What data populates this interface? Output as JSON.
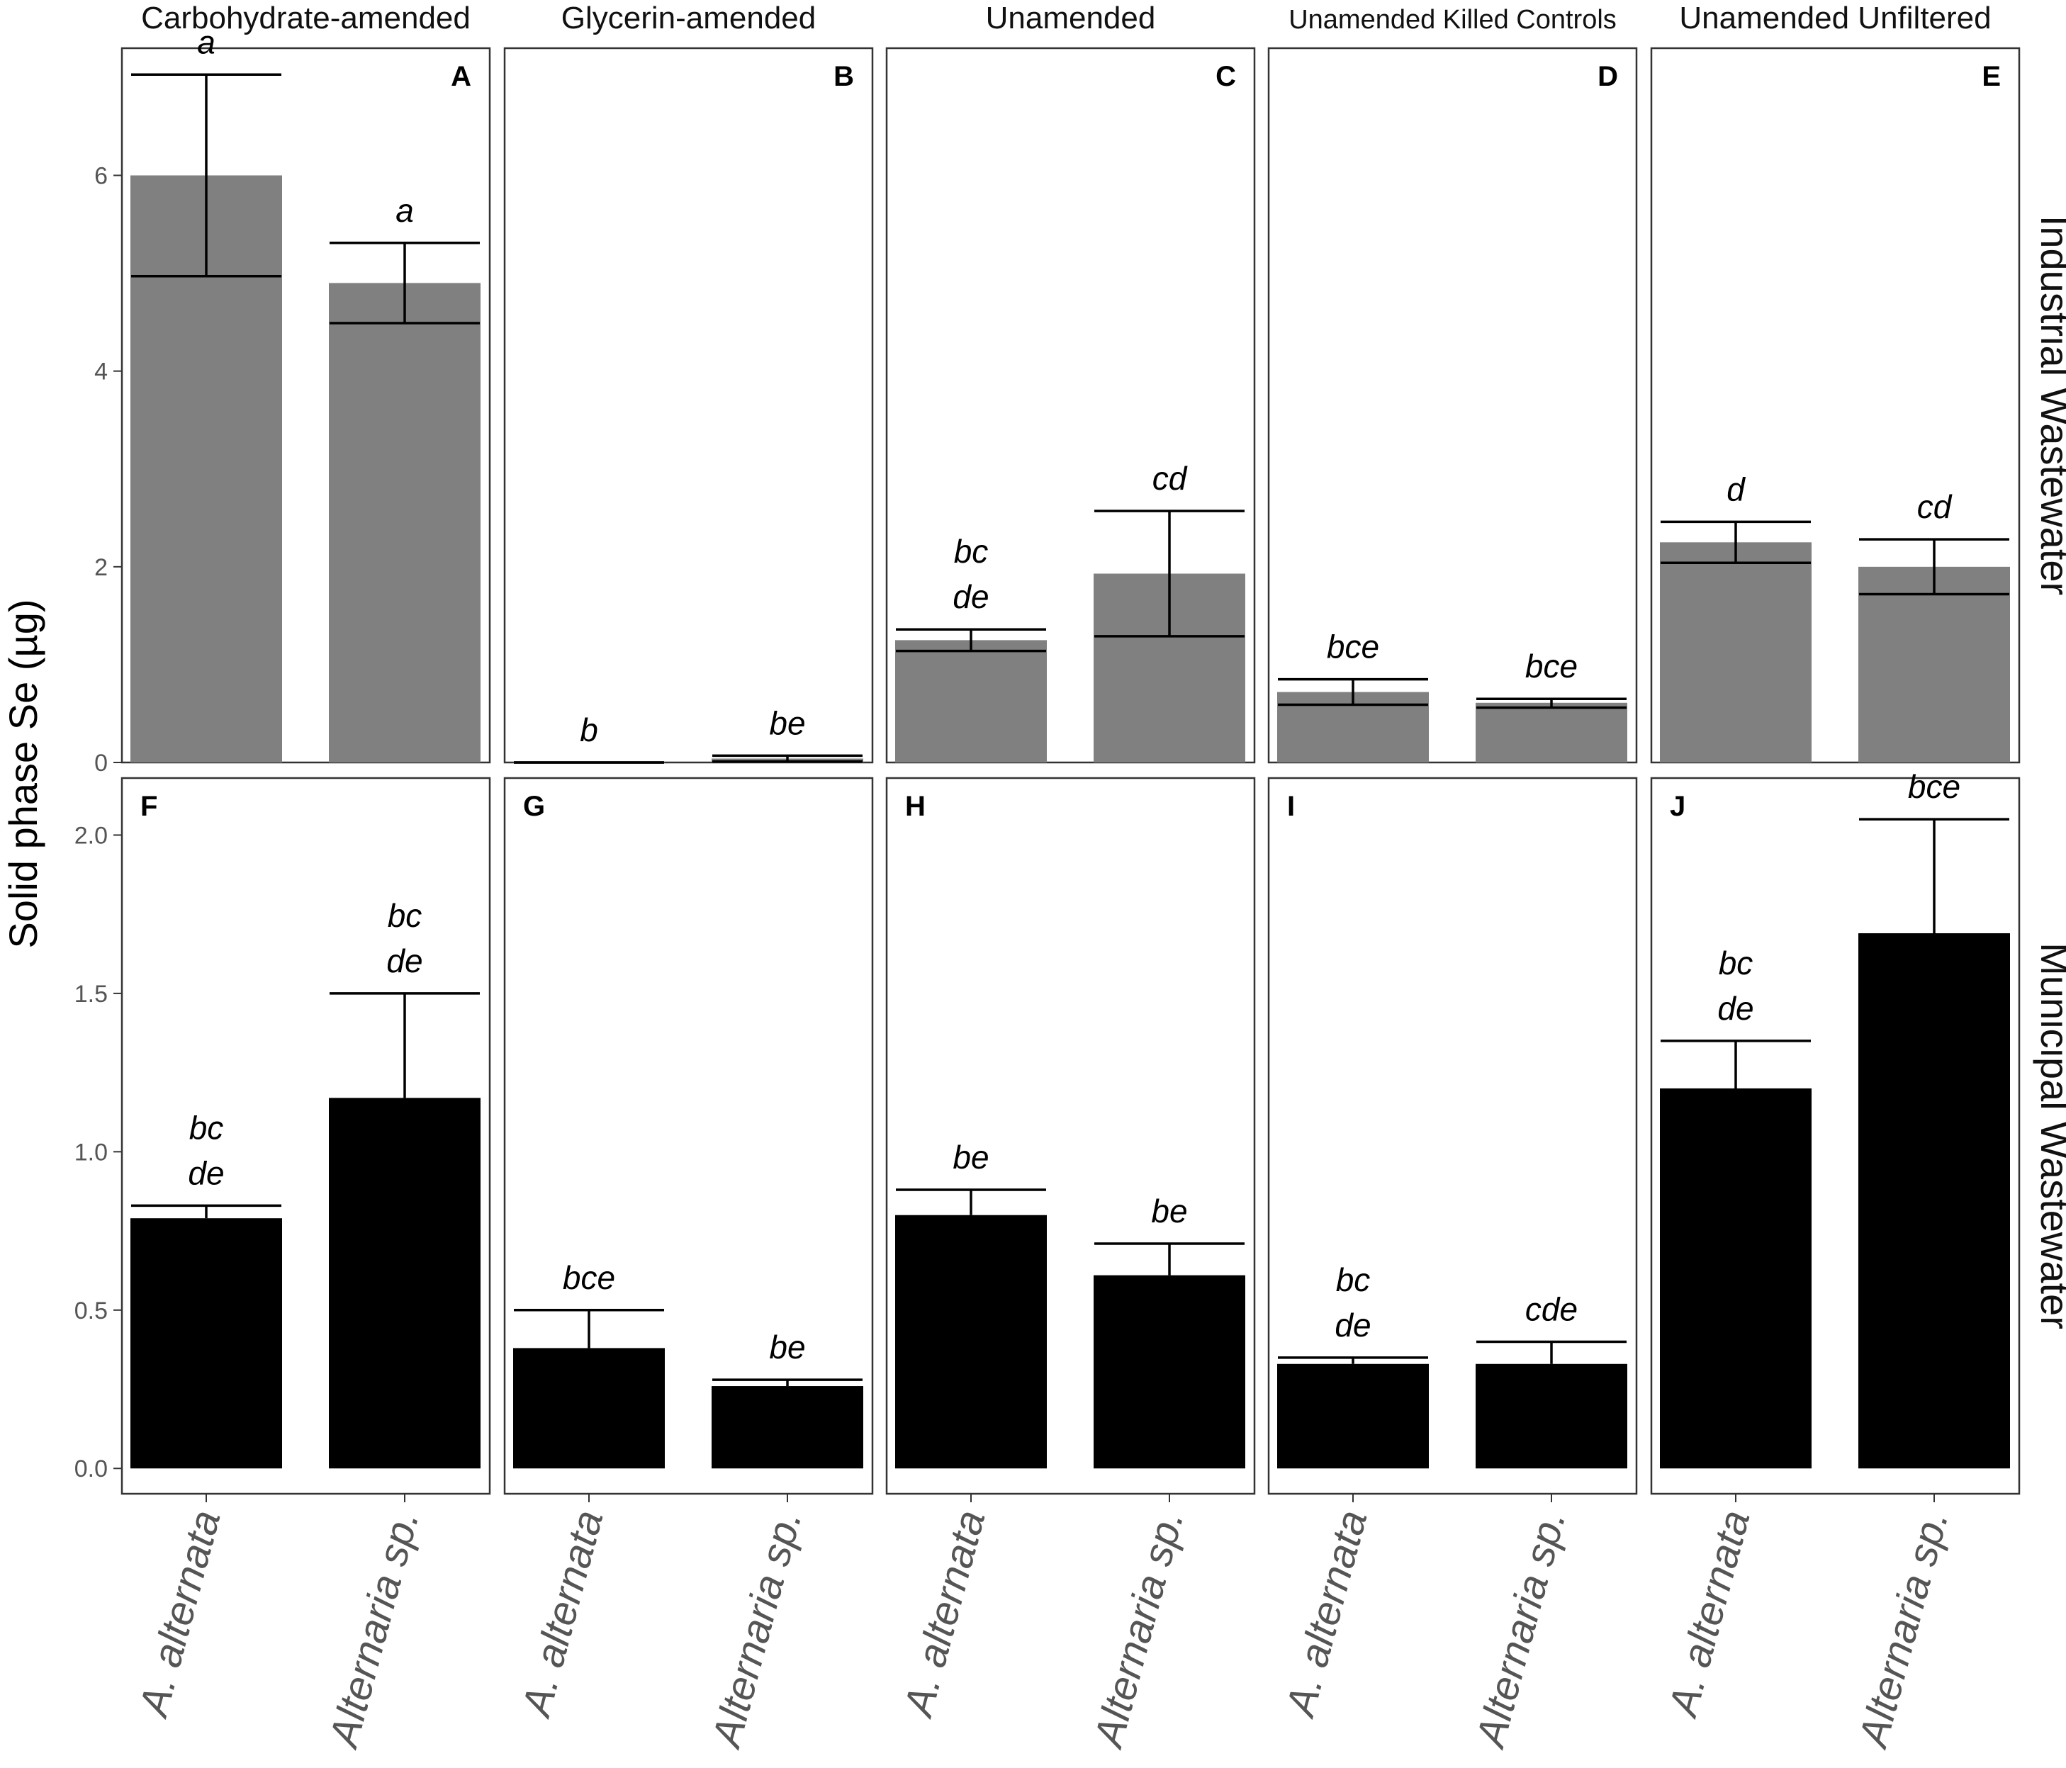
{
  "chart_data": {
    "type": "bar",
    "ylabel": "Solid phase Se (µg)",
    "categories": [
      "A. alternata",
      "Alternaria sp."
    ],
    "columns": [
      "Carbohydrate-amended",
      "Glycerin-amended",
      "Unamended",
      "Unamended Killed Controls",
      "Unamended Unfiltered"
    ],
    "rows": [
      {
        "name": "Industrial Wastewater",
        "color": "#808080",
        "ylim": [
          0,
          7.3
        ],
        "yticks": [
          0,
          2,
          4,
          6
        ],
        "ytick_labels": [
          "0",
          "2",
          "4",
          "6"
        ],
        "panels": [
          {
            "letter": "A",
            "values": [
              6.0,
              4.9
            ],
            "err_lo": [
              4.97,
              4.49
            ],
            "err_hi": [
              7.03,
              5.31
            ],
            "labels": [
              [
                "a"
              ],
              [
                "a"
              ]
            ]
          },
          {
            "letter": "B",
            "values": [
              0.0,
              0.04
            ],
            "err_lo": [
              0.0,
              0.01
            ],
            "err_hi": [
              0.0,
              0.07
            ],
            "labels": [
              [
                "b"
              ],
              [
                "be"
              ]
            ]
          },
          {
            "letter": "C",
            "values": [
              1.25,
              1.93
            ],
            "err_lo": [
              1.14,
              1.29
            ],
            "err_hi": [
              1.36,
              2.57
            ],
            "labels": [
              [
                "bc",
                "de"
              ],
              [
                "cd"
              ]
            ]
          },
          {
            "letter": "D",
            "values": [
              0.72,
              0.61
            ],
            "err_lo": [
              0.59,
              0.56
            ],
            "err_hi": [
              0.85,
              0.65
            ],
            "labels": [
              [
                "bce"
              ],
              [
                "bce"
              ]
            ]
          },
          {
            "letter": "E",
            "values": [
              2.25,
              2.0
            ],
            "err_lo": [
              2.04,
              1.72
            ],
            "err_hi": [
              2.46,
              2.28
            ],
            "labels": [
              [
                "d"
              ],
              [
                "cd"
              ]
            ]
          }
        ]
      },
      {
        "name": "Municipal Wastewater",
        "color": "#000000",
        "ylim": [
          -0.08,
          2.18
        ],
        "yticks": [
          0.0,
          0.5,
          1.0,
          1.5,
          2.0
        ],
        "ytick_labels": [
          "0.0",
          "0.5",
          "1.0",
          "1.5",
          "2.0"
        ],
        "panels": [
          {
            "letter": "F",
            "values": [
              0.79,
              1.17
            ],
            "err_lo": [
              0.79,
              1.17
            ],
            "err_hi": [
              0.83,
              1.5
            ],
            "labels": [
              [
                "bc",
                "de"
              ],
              [
                "bc",
                "de"
              ]
            ]
          },
          {
            "letter": "G",
            "values": [
              0.38,
              0.26
            ],
            "err_lo": [
              0.38,
              0.26
            ],
            "err_hi": [
              0.5,
              0.28
            ],
            "labels": [
              [
                "bce"
              ],
              [
                "be"
              ]
            ]
          },
          {
            "letter": "H",
            "values": [
              0.8,
              0.61
            ],
            "err_lo": [
              0.8,
              0.61
            ],
            "err_hi": [
              0.88,
              0.71
            ],
            "labels": [
              [
                "be"
              ],
              [
                "be"
              ]
            ]
          },
          {
            "letter": "I",
            "values": [
              0.33,
              0.33
            ],
            "err_lo": [
              0.33,
              0.33
            ],
            "err_hi": [
              0.35,
              0.4
            ],
            "labels": [
              [
                "bc",
                "de"
              ],
              [
                "cde"
              ]
            ]
          },
          {
            "letter": "J",
            "values": [
              1.2,
              1.69
            ],
            "err_lo": [
              1.2,
              1.69
            ],
            "err_hi": [
              1.35,
              2.05
            ],
            "labels": [
              [
                "bc",
                "de"
              ],
              [
                "bce"
              ]
            ]
          }
        ]
      }
    ]
  }
}
